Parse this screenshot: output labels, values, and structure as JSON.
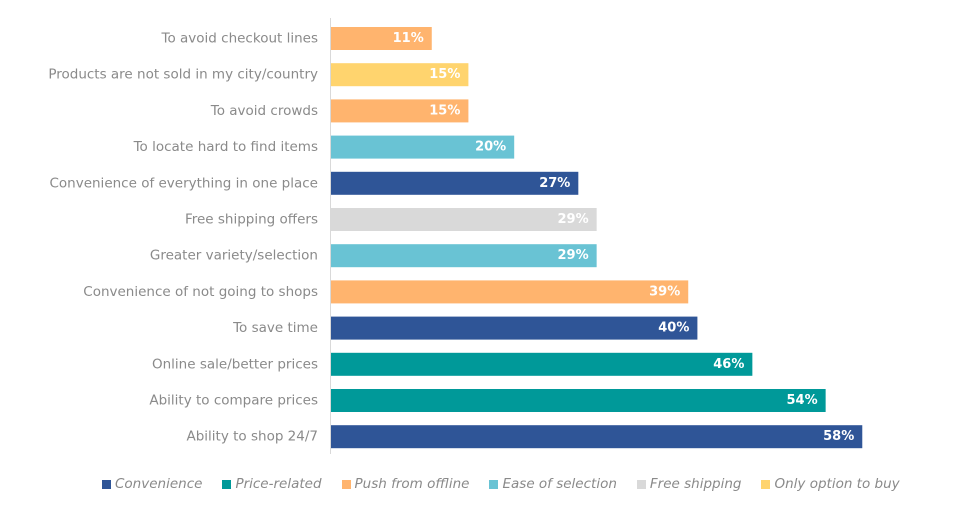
{
  "chart_data": {
    "type": "bar",
    "orientation": "horizontal",
    "categories": [
      "To avoid checkout lines",
      "Products are not sold in my city/country",
      "To avoid crowds",
      "To locate hard to find items",
      "Convenience of everything in one place",
      "Free shipping offers",
      "Greater variety/selection",
      "Convenience of not going to shops",
      "To save time",
      "Online sale/better prices",
      "Ability to compare prices",
      "Ability to shop 24/7"
    ],
    "values": [
      11,
      15,
      15,
      20,
      27,
      29,
      29,
      39,
      40,
      46,
      54,
      58
    ],
    "value_labels": [
      "11%",
      "15%",
      "15%",
      "20%",
      "27%",
      "29%",
      "29%",
      "39%",
      "40%",
      "46%",
      "54%",
      "58%"
    ],
    "groups": [
      "Push from offline",
      "Only option to buy",
      "Push from offline",
      "Ease of selection",
      "Convenience",
      "Free shipping",
      "Ease of selection",
      "Push from offline",
      "Convenience",
      "Price-related",
      "Price-related",
      "Convenience"
    ],
    "legend": [
      {
        "name": "Convenience",
        "color": "#2f5597"
      },
      {
        "name": "Price-related",
        "color": "#009999"
      },
      {
        "name": "Push from offline",
        "color": "#ffb46e"
      },
      {
        "name": "Ease of selection",
        "color": "#69c3d4"
      },
      {
        "name": "Free shipping",
        "color": "#d9d9d9"
      },
      {
        "name": "Only option to buy",
        "color": "#ffd46e"
      }
    ],
    "legend_position": "bottom",
    "xlim": [
      0,
      63
    ],
    "grid": false,
    "title": "",
    "xlabel": "",
    "ylabel": ""
  }
}
